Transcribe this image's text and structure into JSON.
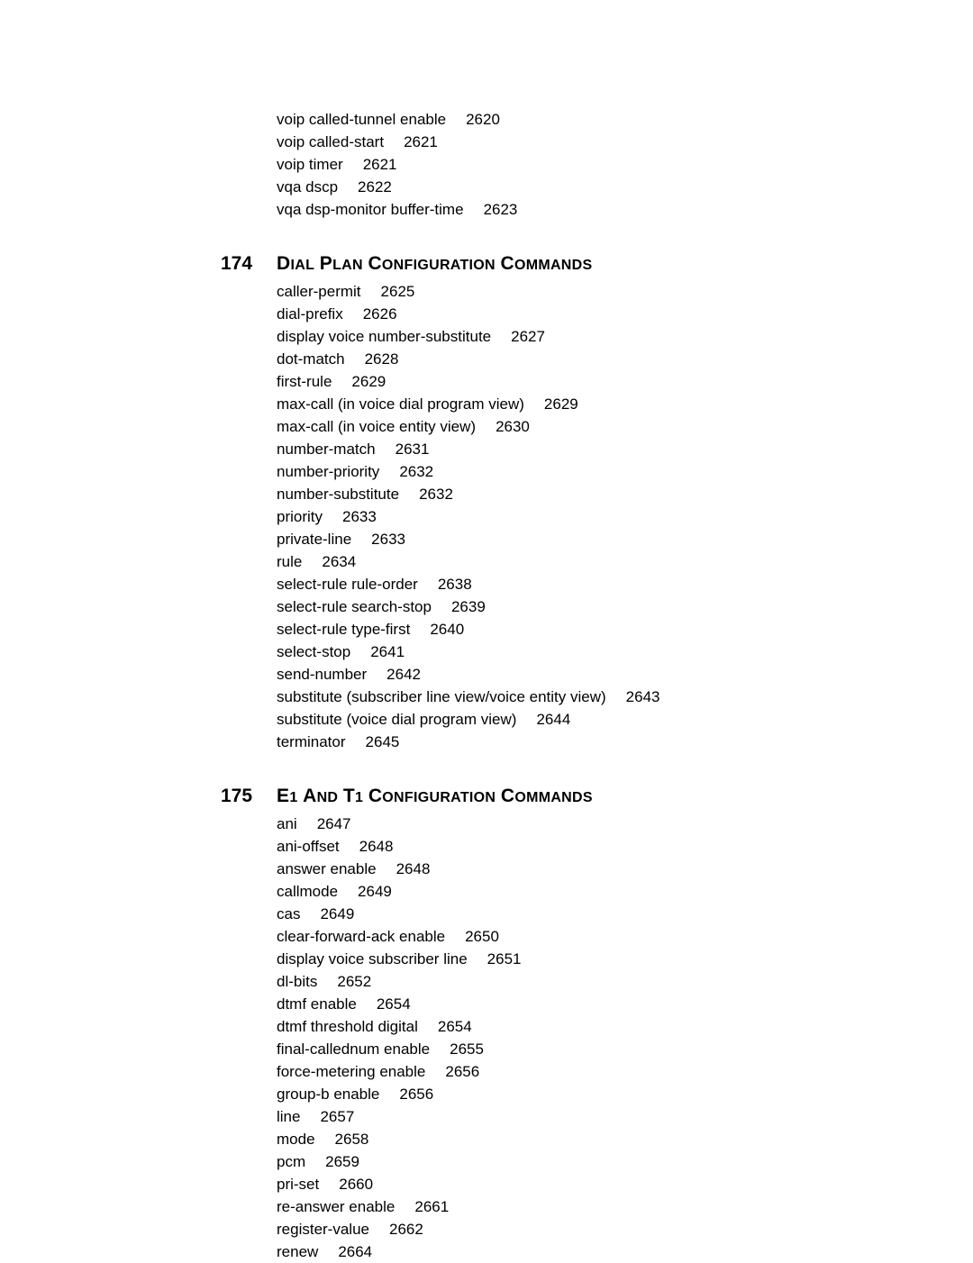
{
  "preSection": {
    "entries": [
      {
        "text": "voip called-tunnel enable",
        "page": "2620"
      },
      {
        "text": "voip called-start",
        "page": "2621"
      },
      {
        "text": "voip timer",
        "page": "2621"
      },
      {
        "text": "vqa dscp",
        "page": "2622"
      },
      {
        "text": "vqa dsp-monitor buffer-time",
        "page": "2623"
      }
    ]
  },
  "sections": [
    {
      "number": "174",
      "title": "Dial Plan Configuration Commands",
      "entries": [
        {
          "text": "caller-permit",
          "page": "2625"
        },
        {
          "text": "dial-prefix",
          "page": "2626"
        },
        {
          "text": "display voice number-substitute",
          "page": "2627"
        },
        {
          "text": "dot-match",
          "page": "2628"
        },
        {
          "text": "first-rule",
          "page": "2629"
        },
        {
          "text": "max-call (in voice dial program view)",
          "page": "2629"
        },
        {
          "text": "max-call (in voice entity view)",
          "page": "2630"
        },
        {
          "text": "number-match",
          "page": "2631"
        },
        {
          "text": "number-priority",
          "page": "2632"
        },
        {
          "text": "number-substitute",
          "page": "2632"
        },
        {
          "text": "priority",
          "page": "2633"
        },
        {
          "text": "private-line",
          "page": "2633"
        },
        {
          "text": "rule",
          "page": "2634"
        },
        {
          "text": "select-rule rule-order",
          "page": "2638"
        },
        {
          "text": "select-rule search-stop",
          "page": "2639"
        },
        {
          "text": "select-rule type-first",
          "page": "2640"
        },
        {
          "text": "select-stop",
          "page": "2641"
        },
        {
          "text": "send-number",
          "page": "2642"
        },
        {
          "text": "substitute (subscriber line view/voice entity view)",
          "page": "2643"
        },
        {
          "text": "substitute (voice dial program view)",
          "page": "2644"
        },
        {
          "text": "terminator",
          "page": "2645"
        }
      ]
    },
    {
      "number": "175",
      "title": "E1 and T1 Configuration Commands",
      "entries": [
        {
          "text": "ani",
          "page": "2647"
        },
        {
          "text": "ani-offset",
          "page": "2648"
        },
        {
          "text": "answer enable",
          "page": "2648"
        },
        {
          "text": "callmode",
          "page": "2649"
        },
        {
          "text": "cas",
          "page": "2649"
        },
        {
          "text": "clear-forward-ack enable",
          "page": "2650"
        },
        {
          "text": "display voice subscriber line",
          "page": "2651"
        },
        {
          "text": "dl-bits",
          "page": "2652"
        },
        {
          "text": "dtmf enable",
          "page": "2654"
        },
        {
          "text": "dtmf threshold digital",
          "page": "2654"
        },
        {
          "text": "final-callednum enable",
          "page": "2655"
        },
        {
          "text": "force-metering enable",
          "page": "2656"
        },
        {
          "text": "group-b enable",
          "page": "2656"
        },
        {
          "text": "line",
          "page": "2657"
        },
        {
          "text": "mode",
          "page": "2658"
        },
        {
          "text": "pcm",
          "page": "2659"
        },
        {
          "text": "pri-set",
          "page": "2660"
        },
        {
          "text": "re-answer enable",
          "page": "2661"
        },
        {
          "text": "register-value",
          "page": "2662"
        },
        {
          "text": "renew",
          "page": "2664"
        }
      ]
    }
  ]
}
